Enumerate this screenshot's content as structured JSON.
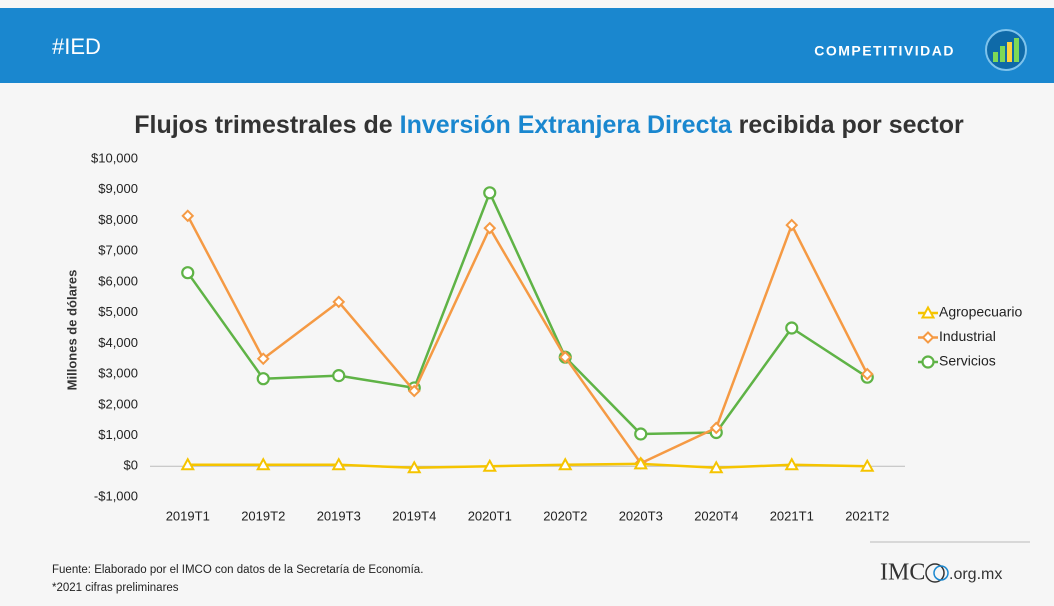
{
  "header": {
    "tag": "#IED",
    "section": "COMPETITIVIDAD"
  },
  "chart_data": {
    "type": "line",
    "title_parts": [
      "Flujos trimestrales de ",
      "Inversión Extranjera Directa",
      " recibida por sector"
    ],
    "ylabel": "Millones de dólares",
    "categories": [
      "2019T1",
      "2019T2",
      "2019T3",
      "2019T4",
      "2020T1",
      "2020T2",
      "2020T3",
      "2020T4",
      "2021T1",
      "2021T2"
    ],
    "series": [
      {
        "name": "Agropecuario",
        "color": "#f5c400",
        "marker": "triangle",
        "values": [
          50,
          50,
          50,
          -50,
          0,
          50,
          80,
          -50,
          50,
          0
        ]
      },
      {
        "name": "Industrial",
        "color": "#f59a44",
        "marker": "diamond",
        "values": [
          8150,
          3500,
          5350,
          2450,
          7750,
          3550,
          100,
          1250,
          7850,
          3000
        ]
      },
      {
        "name": "Servicios",
        "color": "#5fb346",
        "marker": "circle",
        "values": [
          6300,
          2850,
          2950,
          2550,
          8900,
          3550,
          1050,
          1100,
          4500,
          2900
        ]
      }
    ],
    "ylim": [
      -1000,
      10000
    ],
    "yticks": [
      {
        "value": -1000,
        "label": "-$1,000"
      },
      {
        "value": 0,
        "label": "$0"
      },
      {
        "value": 1000,
        "label": "$1,000"
      },
      {
        "value": 2000,
        "label": "$2,000"
      },
      {
        "value": 3000,
        "label": "$3,000"
      },
      {
        "value": 4000,
        "label": "$4,000"
      },
      {
        "value": 5000,
        "label": "$5,000"
      },
      {
        "value": 6000,
        "label": "$6,000"
      },
      {
        "value": 7000,
        "label": "$7,000"
      },
      {
        "value": 8000,
        "label": "$8,000"
      },
      {
        "value": 9000,
        "label": "$9,000"
      },
      {
        "value": 10000,
        "label": "$10,000"
      }
    ],
    "grid": false,
    "legend": "right"
  },
  "footer": {
    "source": "Fuente: Elaborado por el IMCO con datos de la Secretaría de Economía.",
    "note": "*2021 cifras preliminares",
    "logo_text": "IMC",
    "domain": ".org.mx"
  }
}
